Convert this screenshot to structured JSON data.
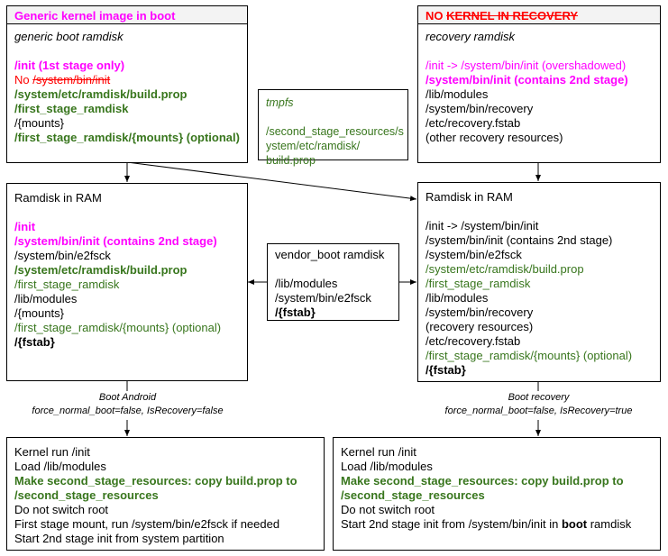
{
  "generic_boot_box": {
    "header": [
      {
        "t": "Generic kernel image in boot",
        "s": "pinkb"
      }
    ],
    "lines": [
      [
        {
          "t": "generic boot ramdisk",
          "s": "italic"
        }
      ],
      [],
      [
        {
          "t": "/init (1st stage only)",
          "s": "pinkb"
        }
      ],
      [
        {
          "t": "No ",
          "s": "red"
        },
        {
          "t": "/system/bin/init",
          "s": "redstrike"
        }
      ],
      [
        {
          "t": "/system/etc/ramdisk/build.prop",
          "s": "greenb"
        }
      ],
      [
        {
          "t": "/first_stage_ramdisk",
          "s": "greenb"
        }
      ],
      [
        {
          "t": "/{mounts}",
          "s": ""
        }
      ],
      [
        {
          "t": "/first_stage_ramdisk/{mounts} (optional)",
          "s": "greenb"
        }
      ]
    ]
  },
  "tmpfs_box": {
    "lines": [
      [
        {
          "t": "tmpfs",
          "s": "greeni"
        }
      ],
      [],
      [
        {
          "t": "/second_stage_resources/s",
          "s": "green"
        }
      ],
      [
        {
          "t": "ystem/etc/ramdisk/",
          "s": "green"
        }
      ],
      [
        {
          "t": "build.prop",
          "s": "green"
        }
      ]
    ]
  },
  "recovery_box": {
    "header": [
      {
        "t": "NO ",
        "s": "red"
      },
      {
        "t": "KERNEL IN RECOVERY",
        "s": "redstrike"
      }
    ],
    "lines": [
      [
        {
          "t": "recovery ramdisk",
          "s": "italic"
        }
      ],
      [],
      [
        {
          "t": "/init -> /system/bin/init (overshadowed)",
          "s": "pink"
        }
      ],
      [
        {
          "t": "/system/bin/init (contains 2nd stage)",
          "s": "pinkb"
        }
      ],
      [
        {
          "t": "/lib/modules",
          "s": ""
        }
      ],
      [
        {
          "t": "/system/bin/recovery",
          "s": ""
        }
      ],
      [
        {
          "t": "/etc/recovery.fstab",
          "s": ""
        }
      ],
      [
        {
          "t": "(other recovery resources)",
          "s": ""
        }
      ]
    ]
  },
  "ram_left_box": {
    "lines": [
      [
        {
          "t": "Ramdisk in RAM",
          "s": ""
        }
      ],
      [],
      [
        {
          "t": "/init",
          "s": "pinkb"
        }
      ],
      [
        {
          "t": "/system/bin/init (contains 2nd stage)",
          "s": "pinkb"
        }
      ],
      [
        {
          "t": "/system/bin/e2fsck",
          "s": ""
        }
      ],
      [
        {
          "t": "/system/etc/ramdisk/build.prop",
          "s": "greenb"
        }
      ],
      [
        {
          "t": "/first_stage_ramdisk",
          "s": "green"
        }
      ],
      [
        {
          "t": "/lib/modules",
          "s": ""
        }
      ],
      [
        {
          "t": "/{mounts}",
          "s": ""
        }
      ],
      [
        {
          "t": "/first_stage_ramdisk/{mounts} (optional)",
          "s": "green"
        }
      ],
      [
        {
          "t": "/{fstab}",
          "s": "bold"
        }
      ]
    ]
  },
  "vendor_box": {
    "lines": [
      [
        {
          "t": "vendor_boot ramdisk",
          "s": ""
        }
      ],
      [],
      [
        {
          "t": "/lib/modules",
          "s": ""
        }
      ],
      [
        {
          "t": "/system/bin/e2fsck",
          "s": ""
        }
      ],
      [
        {
          "t": "/{fstab}",
          "s": "bold"
        }
      ]
    ]
  },
  "ram_right_box": {
    "lines": [
      [
        {
          "t": "Ramdisk in RAM",
          "s": ""
        }
      ],
      [],
      [
        {
          "t": "/init -> /system/bin/init",
          "s": ""
        }
      ],
      [
        {
          "t": "/system/bin/init (contains 2nd stage)",
          "s": ""
        }
      ],
      [
        {
          "t": "/system/bin/e2fsck",
          "s": ""
        }
      ],
      [
        {
          "t": "/system/etc/ramdisk/build.prop",
          "s": "green"
        }
      ],
      [
        {
          "t": "/first_stage_ramdisk",
          "s": "green"
        }
      ],
      [
        {
          "t": "/lib/modules",
          "s": ""
        }
      ],
      [
        {
          "t": "/system/bin/recovery",
          "s": ""
        }
      ],
      [
        {
          "t": "(recovery resources)",
          "s": ""
        }
      ],
      [
        {
          "t": "/etc/recovery.fstab",
          "s": ""
        }
      ],
      [
        {
          "t": "/first_stage_ramdisk/{mounts} (optional)",
          "s": "green"
        }
      ],
      [
        {
          "t": "/{fstab}",
          "s": "bold"
        }
      ]
    ]
  },
  "boot_android_label": {
    "line1": "Boot Android",
    "line2": "force_normal_boot=false, IsRecovery=false"
  },
  "boot_recovery_label": {
    "line1": "Boot recovery",
    "line2": "force_normal_boot=false, IsRecovery=true"
  },
  "android_steps_box": {
    "lines": [
      [
        {
          "t": "Kernel run /init",
          "s": ""
        }
      ],
      [
        {
          "t": "Load /lib/modules",
          "s": ""
        }
      ],
      [
        {
          "t": "Make second_stage_resources: copy build.prop to",
          "s": "greenb"
        }
      ],
      [
        {
          "t": "/second_stage_resources",
          "s": "greenb"
        }
      ],
      [
        {
          "t": "Do not switch root",
          "s": ""
        }
      ],
      [
        {
          "t": "First stage mount, run /system/bin/e2fsck if needed",
          "s": ""
        }
      ],
      [
        {
          "t": "Start 2nd stage init from system partition",
          "s": ""
        }
      ]
    ]
  },
  "recovery_steps_box": {
    "lines": [
      [
        {
          "t": "Kernel run /init",
          "s": ""
        }
      ],
      [
        {
          "t": "Load /lib/modules",
          "s": ""
        }
      ],
      [
        {
          "t": "Make second_stage_resources: copy build.prop to",
          "s": "greenb"
        }
      ],
      [
        {
          "t": "/second_stage_resources",
          "s": "greenb"
        }
      ],
      [
        {
          "t": "Do not switch root",
          "s": ""
        }
      ],
      [
        {
          "t": "Start 2nd stage init from /system/bin/init in ",
          "s": ""
        },
        {
          "t": "boot",
          "s": "bold"
        },
        {
          "t": " ramdisk",
          "s": ""
        }
      ]
    ]
  },
  "colors": {
    "pink": "#ff00ff",
    "red": "#ff0000",
    "green": "#38761d",
    "header_bg": "#f3f3f3"
  }
}
